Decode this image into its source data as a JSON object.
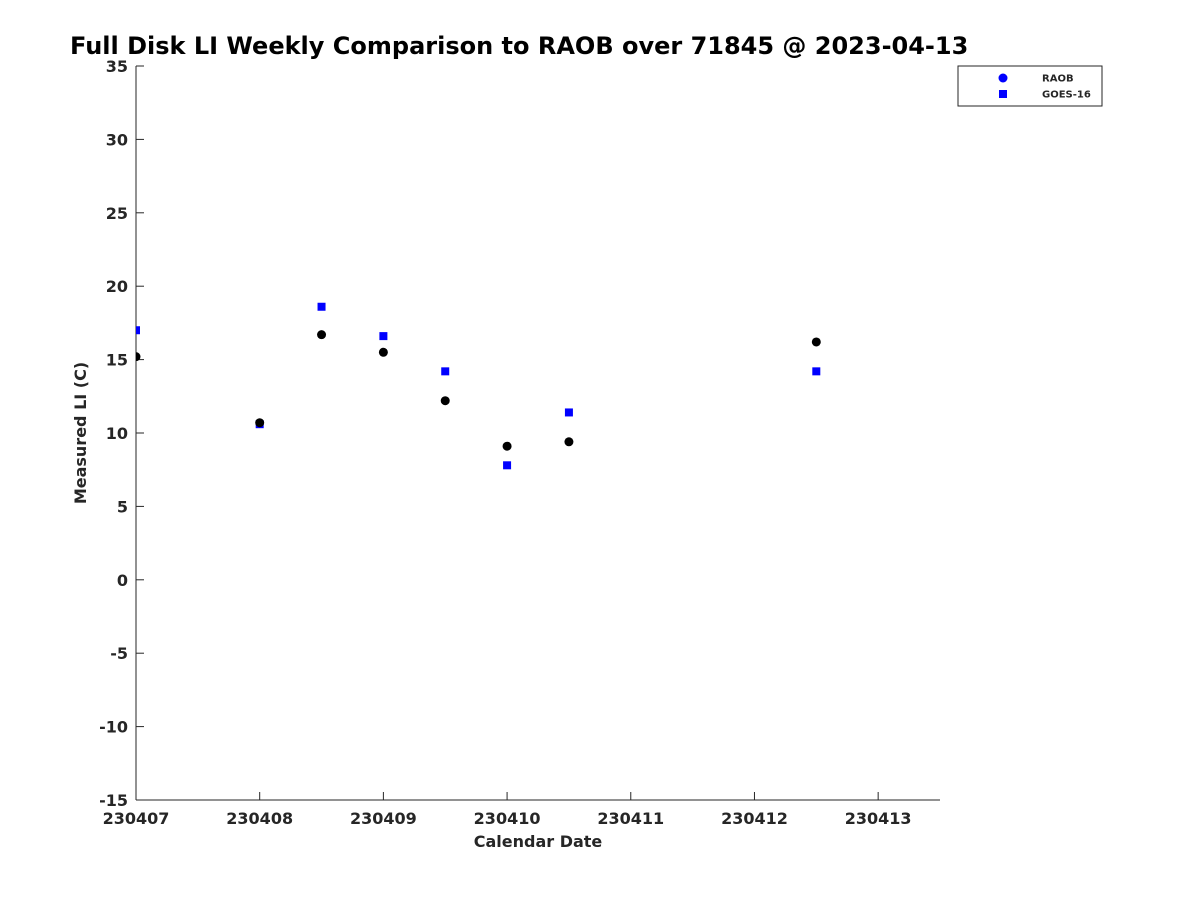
{
  "chart_data": {
    "type": "scatter",
    "title": "Full Disk LI Weekly Comparison to RAOB over 71845 @ 2023-04-13",
    "xlabel": "Calendar Date",
    "ylabel": "Measured LI (C)",
    "x_ticks": [
      {
        "value": 230407,
        "label": "230407"
      },
      {
        "value": 230408,
        "label": "230408"
      },
      {
        "value": 230409,
        "label": "230409"
      },
      {
        "value": 230410,
        "label": "230410"
      },
      {
        "value": 230411,
        "label": "230411"
      },
      {
        "value": 230412,
        "label": "230412"
      },
      {
        "value": 230413,
        "label": "230413"
      }
    ],
    "y_ticks": [
      {
        "value": -15,
        "label": "-15"
      },
      {
        "value": -10,
        "label": "-10"
      },
      {
        "value": -5,
        "label": "-5"
      },
      {
        "value": 0,
        "label": "0"
      },
      {
        "value": 5,
        "label": "5"
      },
      {
        "value": 10,
        "label": "10"
      },
      {
        "value": 15,
        "label": "15"
      },
      {
        "value": 20,
        "label": "20"
      },
      {
        "value": 25,
        "label": "25"
      },
      {
        "value": 30,
        "label": "30"
      },
      {
        "value": 35,
        "label": "35"
      }
    ],
    "xlim": [
      230407,
      230413.5
    ],
    "ylim": [
      -15,
      35
    ],
    "grid": false,
    "legend_position": "top-right",
    "series": [
      {
        "name": "RAOB",
        "marker": "circle",
        "color": "#000000",
        "legend_color": "#0000ff",
        "x": [
          230407,
          230408,
          230408.5,
          230409,
          230409.5,
          230410,
          230410.5,
          230412.5
        ],
        "y": [
          15.2,
          10.7,
          16.7,
          15.5,
          12.2,
          9.1,
          9.4,
          16.2
        ]
      },
      {
        "name": "GOES-16",
        "marker": "square",
        "color": "#0000ff",
        "legend_color": "#0000ff",
        "x": [
          230407,
          230408,
          230408.5,
          230409,
          230409.5,
          230410,
          230410.5,
          230412.5
        ],
        "y": [
          17.0,
          10.6,
          18.6,
          16.6,
          14.2,
          7.8,
          11.4,
          14.2
        ]
      }
    ]
  }
}
